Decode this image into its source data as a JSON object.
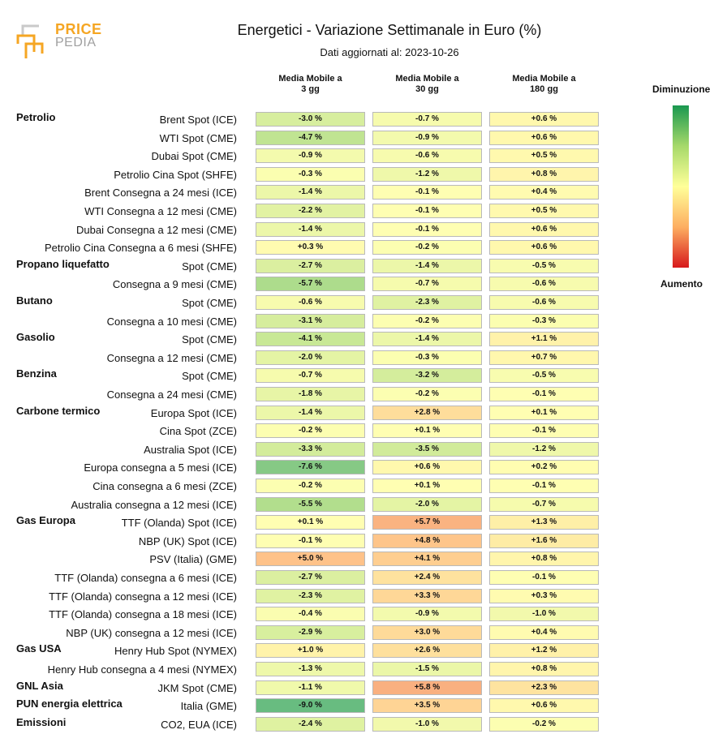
{
  "logo": {
    "line1": "PRICE",
    "line2": "PEDIA"
  },
  "chart_data": {
    "type": "table",
    "title": "Energetici - Variazione Settimanale in Euro (%)",
    "subtitle": "Dati aggiornati al: 2023-10-26",
    "columns": [
      "Media Mobile a 3 gg",
      "Media Mobile a 30 gg",
      "Media Mobile a 180 gg"
    ],
    "column_lines": [
      [
        "Media Mobile a",
        "3 gg"
      ],
      [
        "Media Mobile a",
        "30 gg"
      ],
      [
        "Media Mobile a",
        "180 gg"
      ]
    ],
    "legend": {
      "top": "Diminuzione",
      "bottom": "Aumento"
    },
    "rows": [
      {
        "group": "Petrolio",
        "label": "Brent Spot (ICE)",
        "values": [
          -3.0,
          -0.7,
          0.6
        ]
      },
      {
        "group": "",
        "label": "WTI Spot (CME)",
        "values": [
          -4.7,
          -0.9,
          0.6
        ]
      },
      {
        "group": "",
        "label": "Dubai Spot (CME)",
        "values": [
          -0.9,
          -0.6,
          0.5
        ]
      },
      {
        "group": "",
        "label": "Petrolio Cina Spot (SHFE)",
        "values": [
          -0.3,
          -1.2,
          0.8
        ]
      },
      {
        "group": "",
        "label": "Brent Consegna a 24 mesi (ICE)",
        "values": [
          -1.4,
          -0.1,
          0.4
        ]
      },
      {
        "group": "",
        "label": "WTI Consegna a 12 mesi (CME)",
        "values": [
          -2.2,
          -0.1,
          0.5
        ]
      },
      {
        "group": "",
        "label": "Dubai Consegna a 12 mesi (CME)",
        "values": [
          -1.4,
          -0.1,
          0.6
        ]
      },
      {
        "group": "",
        "label": "Petrolio Cina Consegna a 6 mesi (SHFE)",
        "values": [
          0.3,
          -0.2,
          0.6
        ]
      },
      {
        "group": "Propano liquefatto",
        "label": "Spot (CME)",
        "values": [
          -2.7,
          -1.4,
          -0.5
        ]
      },
      {
        "group": "",
        "label": "Consegna a 9 mesi (CME)",
        "values": [
          -5.7,
          -0.7,
          -0.6
        ]
      },
      {
        "group": "Butano",
        "label": "Spot (CME)",
        "values": [
          -0.6,
          -2.3,
          -0.6
        ]
      },
      {
        "group": "",
        "label": "Consegna a 10 mesi (CME)",
        "values": [
          -3.1,
          -0.2,
          -0.3
        ]
      },
      {
        "group": "Gasolio",
        "label": "Spot (CME)",
        "values": [
          -4.1,
          -1.4,
          1.1
        ]
      },
      {
        "group": "",
        "label": "Consegna a 12 mesi (CME)",
        "values": [
          -2.0,
          -0.3,
          0.7
        ]
      },
      {
        "group": "Benzina",
        "label": "Spot (CME)",
        "values": [
          -0.7,
          -3.2,
          -0.5
        ]
      },
      {
        "group": "",
        "label": "Consegna a 24 mesi (CME)",
        "values": [
          -1.8,
          -0.2,
          -0.1
        ]
      },
      {
        "group": "Carbone termico",
        "label": "Europa Spot (ICE)",
        "values": [
          -1.4,
          2.8,
          0.1
        ]
      },
      {
        "group": "",
        "label": "Cina Spot (ZCE)",
        "values": [
          -0.2,
          0.1,
          -0.1
        ]
      },
      {
        "group": "",
        "label": "Australia Spot (ICE)",
        "values": [
          -3.3,
          -3.5,
          -1.2
        ]
      },
      {
        "group": "",
        "label": "Europa consegna a 5 mesi (ICE)",
        "values": [
          -7.6,
          0.6,
          0.2
        ]
      },
      {
        "group": "",
        "label": "Cina consegna a 6 mesi (ZCE)",
        "values": [
          -0.2,
          0.1,
          -0.1
        ]
      },
      {
        "group": "",
        "label": "Australia consegna a 12 mesi (ICE)",
        "values": [
          -5.5,
          -2.0,
          -0.7
        ]
      },
      {
        "group": "Gas Europa",
        "label": "TTF (Olanda) Spot (ICE)",
        "values": [
          0.1,
          5.7,
          1.3
        ]
      },
      {
        "group": "",
        "label": "NBP (UK) Spot (ICE)",
        "values": [
          -0.1,
          4.8,
          1.6
        ]
      },
      {
        "group": "",
        "label": "PSV (Italia) (GME)",
        "values": [
          5.0,
          4.1,
          0.8
        ]
      },
      {
        "group": "",
        "label": "TTF (Olanda) consegna a 6 mesi (ICE)",
        "values": [
          -2.7,
          2.4,
          -0.1
        ]
      },
      {
        "group": "",
        "label": "TTF (Olanda) consegna a 12 mesi (ICE)",
        "values": [
          -2.3,
          3.3,
          0.3
        ]
      },
      {
        "group": "",
        "label": "TTF (Olanda) consegna a 18 mesi (ICE)",
        "values": [
          -0.4,
          -0.9,
          -1.0
        ]
      },
      {
        "group": "",
        "label": "NBP (UK) consegna a 12 mesi (ICE)",
        "values": [
          -2.9,
          3.0,
          0.4
        ]
      },
      {
        "group": "Gas USA",
        "label": "Henry Hub Spot (NYMEX)",
        "values": [
          1.0,
          2.6,
          1.2
        ]
      },
      {
        "group": "",
        "label": "Henry Hub consegna a 4 mesi (NYMEX)",
        "values": [
          -1.3,
          -1.5,
          0.8
        ]
      },
      {
        "group": "GNL Asia",
        "label": "JKM Spot (CME)",
        "values": [
          -1.1,
          5.8,
          2.3
        ]
      },
      {
        "group": "PUN energia elettrica",
        "label": "Italia (GME)",
        "values": [
          -9.0,
          3.5,
          0.6
        ]
      },
      {
        "group": "Emissioni",
        "label": "CO2, EUA (ICE)",
        "values": [
          -2.4,
          -1.0,
          -0.2
        ]
      }
    ]
  }
}
